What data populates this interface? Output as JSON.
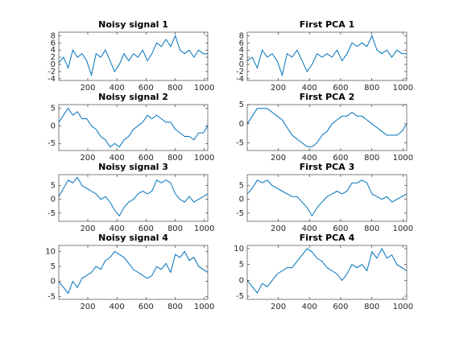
{
  "chart_data": [
    {
      "type": "line",
      "title": "Noisy signal 1",
      "color": "#0072BD",
      "xlim": [
        1,
        1024
      ],
      "ylim": [
        -4.5,
        9
      ],
      "xticks": [
        200,
        400,
        600,
        800,
        1000
      ],
      "yticks": [
        -4,
        -2,
        0,
        2,
        4,
        6,
        8
      ],
      "x": [
        1,
        33,
        65,
        97,
        129,
        161,
        193,
        225,
        257,
        289,
        321,
        353,
        385,
        417,
        449,
        481,
        513,
        545,
        577,
        609,
        641,
        673,
        705,
        737,
        769,
        801,
        833,
        865,
        897,
        929,
        961,
        993,
        1024
      ],
      "values": [
        0.5,
        2,
        -1,
        4,
        2,
        3,
        1,
        -3,
        3,
        2,
        4,
        1,
        -2,
        0,
        3,
        1,
        3,
        2,
        4,
        1,
        3,
        6,
        5,
        7,
        5,
        8,
        4,
        3,
        4,
        2,
        4,
        3,
        3
      ]
    },
    {
      "type": "line",
      "title": "First PCA 1",
      "color": "#0072BD",
      "xlim": [
        1,
        1024
      ],
      "ylim": [
        -4.5,
        9
      ],
      "xticks": [
        200,
        400,
        600,
        800,
        1000
      ],
      "yticks": [
        -4,
        -2,
        0,
        2,
        4,
        6,
        8
      ],
      "x": [
        1,
        33,
        65,
        97,
        129,
        161,
        193,
        225,
        257,
        289,
        321,
        353,
        385,
        417,
        449,
        481,
        513,
        545,
        577,
        609,
        641,
        673,
        705,
        737,
        769,
        801,
        833,
        865,
        897,
        929,
        961,
        993,
        1024
      ],
      "values": [
        1,
        2,
        -1,
        4,
        2,
        3,
        1,
        -3,
        3,
        2,
        4,
        1,
        -2,
        0,
        3,
        2,
        3,
        2,
        4,
        1,
        3,
        6,
        5,
        6,
        5,
        8,
        4,
        3,
        4,
        2,
        4,
        3,
        3
      ]
    },
    {
      "type": "line",
      "title": "Noisy signal 2",
      "color": "#0072BD",
      "xlim": [
        1,
        1024
      ],
      "ylim": [
        -7,
        6
      ],
      "xticks": [
        200,
        400,
        600,
        800,
        1000
      ],
      "yticks": [
        -5,
        0,
        5
      ],
      "x": [
        1,
        33,
        65,
        97,
        129,
        161,
        193,
        225,
        257,
        289,
        321,
        353,
        385,
        417,
        449,
        481,
        513,
        545,
        577,
        609,
        641,
        673,
        705,
        737,
        769,
        801,
        833,
        865,
        897,
        929,
        961,
        993,
        1024
      ],
      "values": [
        1,
        3,
        5,
        3,
        4,
        2,
        2,
        0,
        -1,
        -3,
        -4,
        -6,
        -5,
        -6,
        -4,
        -3,
        -1,
        0,
        1,
        3,
        2,
        3,
        2,
        1,
        1,
        -1,
        -2,
        -3,
        -3,
        -4,
        -2,
        -2,
        0
      ]
    },
    {
      "type": "line",
      "title": "First PCA 2",
      "color": "#0072BD",
      "xlim": [
        1,
        1024
      ],
      "ylim": [
        -7,
        5
      ],
      "xticks": [
        200,
        400,
        600,
        800,
        1000
      ],
      "yticks": [
        -5,
        0,
        5
      ],
      "x": [
        1,
        33,
        65,
        97,
        129,
        161,
        193,
        225,
        257,
        289,
        321,
        353,
        385,
        417,
        449,
        481,
        513,
        545,
        577,
        609,
        641,
        673,
        705,
        737,
        769,
        801,
        833,
        865,
        897,
        929,
        961,
        993,
        1024
      ],
      "values": [
        0,
        2,
        4,
        4,
        4,
        3,
        2,
        1,
        -1,
        -3,
        -4,
        -5,
        -6,
        -6,
        -5,
        -3,
        -2,
        0,
        1,
        2,
        2,
        3,
        2,
        2,
        1,
        0,
        -1,
        -2,
        -3,
        -3,
        -3,
        -2,
        0
      ]
    },
    {
      "type": "line",
      "title": "Noisy signal 3",
      "color": "#0072BD",
      "xlim": [
        1,
        1024
      ],
      "ylim": [
        -8,
        9
      ],
      "xticks": [
        200,
        400,
        600,
        800,
        1000
      ],
      "yticks": [
        -5,
        0,
        5
      ],
      "x": [
        1,
        33,
        65,
        97,
        129,
        161,
        193,
        225,
        257,
        289,
        321,
        353,
        385,
        417,
        449,
        481,
        513,
        545,
        577,
        609,
        641,
        673,
        705,
        737,
        769,
        801,
        833,
        865,
        897,
        929,
        961,
        993,
        1024
      ],
      "values": [
        1,
        4,
        7,
        6,
        8,
        5,
        4,
        3,
        2,
        0,
        1,
        -1,
        -4,
        -6,
        -3,
        -1,
        0,
        2,
        3,
        2,
        3,
        7,
        6,
        7,
        6,
        2,
        0,
        -1,
        1,
        -1,
        0,
        1,
        2
      ]
    },
    {
      "type": "line",
      "title": "First PCA 3",
      "color": "#0072BD",
      "xlim": [
        1,
        1024
      ],
      "ylim": [
        -8,
        9
      ],
      "xticks": [
        200,
        400,
        600,
        800,
        1000
      ],
      "yticks": [
        -5,
        0,
        5
      ],
      "x": [
        1,
        33,
        65,
        97,
        129,
        161,
        193,
        225,
        257,
        289,
        321,
        353,
        385,
        417,
        449,
        481,
        513,
        545,
        577,
        609,
        641,
        673,
        705,
        737,
        769,
        801,
        833,
        865,
        897,
        929,
        961,
        993,
        1024
      ],
      "values": [
        2,
        4,
        7,
        6,
        7,
        5,
        4,
        3,
        2,
        1,
        1,
        -1,
        -3,
        -6,
        -3,
        -1,
        1,
        2,
        3,
        2,
        3,
        6,
        6,
        7,
        6,
        2,
        1,
        0,
        1,
        -1,
        0,
        1,
        2
      ]
    },
    {
      "type": "line",
      "title": "Noisy signal 4",
      "color": "#0072BD",
      "xlim": [
        1,
        1024
      ],
      "ylim": [
        -6,
        12
      ],
      "xticks": [
        200,
        400,
        600,
        800,
        1000
      ],
      "yticks": [
        -5,
        0,
        5,
        10
      ],
      "x": [
        1,
        33,
        65,
        97,
        129,
        161,
        193,
        225,
        257,
        289,
        321,
        353,
        385,
        417,
        449,
        481,
        513,
        545,
        577,
        609,
        641,
        673,
        705,
        737,
        769,
        801,
        833,
        865,
        897,
        929,
        961,
        993,
        1024
      ],
      "values": [
        0,
        -2,
        -4,
        0,
        -2,
        1,
        2,
        3,
        5,
        4,
        7,
        8,
        10,
        9,
        8,
        6,
        4,
        3,
        2,
        1,
        2,
        5,
        4,
        6,
        3,
        9,
        8,
        10,
        7,
        8,
        5,
        4,
        3
      ]
    },
    {
      "type": "line",
      "title": "First PCA 4",
      "color": "#0072BD",
      "xlim": [
        1,
        1024
      ],
      "ylim": [
        -6,
        11
      ],
      "xticks": [
        200,
        400,
        600,
        800,
        1000
      ],
      "yticks": [
        -5,
        0,
        5,
        10
      ],
      "x": [
        1,
        33,
        65,
        97,
        129,
        161,
        193,
        225,
        257,
        289,
        321,
        353,
        385,
        417,
        449,
        481,
        513,
        545,
        577,
        609,
        641,
        673,
        705,
        737,
        769,
        801,
        833,
        865,
        897,
        929,
        961,
        993,
        1024
      ],
      "values": [
        0,
        -2,
        -4,
        -1,
        -2,
        0,
        2,
        3,
        4,
        4,
        6,
        8,
        10,
        9,
        7,
        6,
        4,
        3,
        2,
        0,
        2,
        5,
        4,
        5,
        3,
        9,
        7,
        10,
        7,
        8,
        5,
        4,
        3
      ]
    }
  ]
}
